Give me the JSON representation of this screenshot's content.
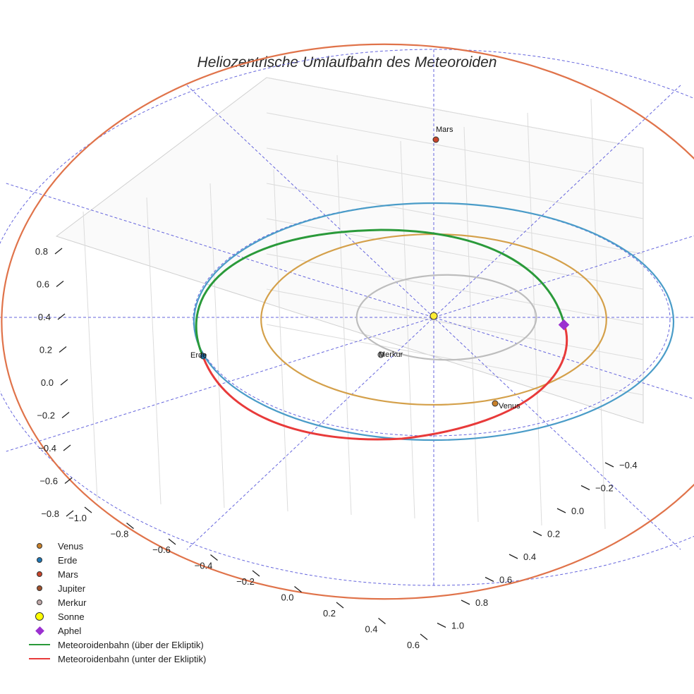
{
  "chart_data": {
    "type": "scatter",
    "projection": "3d",
    "title": "Heliozentrische Umlaufbahn des Meteoroiden",
    "x_ticks": [
      "−1.0",
      "−0.8",
      "−0.6",
      "−0.4",
      "−0.2",
      "0.0",
      "0.2",
      "0.4",
      "0.6"
    ],
    "y_ticks": [
      "−0.4",
      "−0.2",
      "0.0",
      "0.2",
      "0.4",
      "0.6",
      "0.8",
      "1.0"
    ],
    "z_ticks": [
      "0.8",
      "0.6",
      "0.4",
      "0.2",
      "0.0",
      "−0.2",
      "−0.4",
      "−0.6",
      "−0.8"
    ],
    "orbits": [
      {
        "name": "Merkur",
        "semi_major_au": 0.39,
        "color": "#bdbdbd"
      },
      {
        "name": "Venus",
        "semi_major_au": 0.72,
        "color": "#d4a04a"
      },
      {
        "name": "Erde",
        "semi_major_au": 1.0,
        "color": "#4a9cc8"
      },
      {
        "name": "Mars",
        "semi_major_au": 1.52,
        "color": "#e0734a"
      }
    ],
    "points": [
      {
        "name": "Mars",
        "color": "#c8442a"
      },
      {
        "name": "Erde",
        "color": "#1f77b4"
      },
      {
        "name": "Merkur",
        "color": "#aaaaaa"
      },
      {
        "name": "Venus",
        "color": "#c8802a"
      }
    ],
    "aphel_color": "#9b30d0",
    "sun_color": "#ffee33",
    "meteoroid_above_color": "#2a9a3a",
    "meteoroid_below_color": "#e83a3a",
    "legend": [
      {
        "name": "Venus",
        "marker": "dot",
        "color": "#c8802a"
      },
      {
        "name": "Erde",
        "marker": "dot",
        "color": "#1f77b4"
      },
      {
        "name": "Mars",
        "marker": "dot",
        "color": "#c8442a"
      },
      {
        "name": "Jupiter",
        "marker": "dot",
        "color": "#a0522d"
      },
      {
        "name": "Merkur",
        "marker": "dot",
        "color": "#c0a8a8"
      },
      {
        "name": "Sonne",
        "marker": "bigdot",
        "color": "#ffff00"
      },
      {
        "name": "Aphel",
        "marker": "diamond",
        "color": "#9b30d0"
      },
      {
        "name": "Meteoroidenbahn (über der Ekliptik)",
        "marker": "line",
        "color": "#2a9a3a"
      },
      {
        "name": "Meteoroidenbahn (unter der Ekliptik)",
        "marker": "line",
        "color": "#e83a3a"
      }
    ]
  }
}
